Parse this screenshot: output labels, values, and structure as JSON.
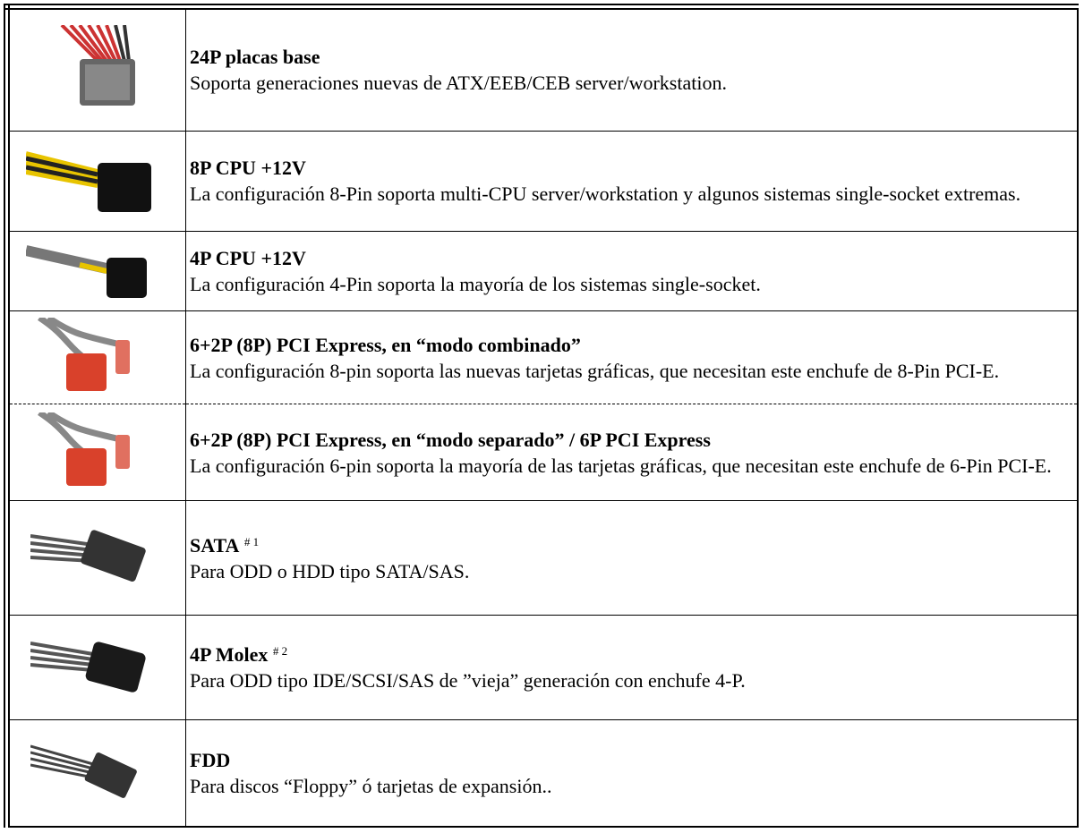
{
  "rows": [
    {
      "title": "24P placas base",
      "description": "Soporta generaciones nuevas de ATX/EEB/CEB server/workstation."
    },
    {
      "title": "8P CPU +12V",
      "description": "La configuración 8-Pin soporta multi-CPU server/workstation y algunos sistemas single-socket extremas."
    },
    {
      "title": "4P CPU +12V",
      "description": "La configuración 4-Pin soporta la mayoría de los sistemas single-socket."
    },
    {
      "title": "6+2P (8P) PCI Express, en “modo combinado”",
      "description": "La configuración 8-pin soporta las nuevas tarjetas gráficas, que necesitan este enchufe de 8-Pin PCI-E."
    },
    {
      "title": "6+2P (8P) PCI Express, en “modo separado” / 6P PCI Express",
      "description": "La configuración 6-pin soporta la mayoría de las tarjetas gráficas, que necesitan este enchufe de 6-Pin PCI-E."
    },
    {
      "title": "SATA",
      "note": "# 1",
      "description": "Para ODD o HDD tipo SATA/SAS."
    },
    {
      "title": "4P Molex",
      "note": "# 2",
      "description": "Para ODD tipo IDE/SCSI/SAS de ”vieja” generación con enchufe 4-P."
    },
    {
      "title": "FDD",
      "description": "Para discos “Floppy” ó tarjetas de expansión.."
    }
  ]
}
